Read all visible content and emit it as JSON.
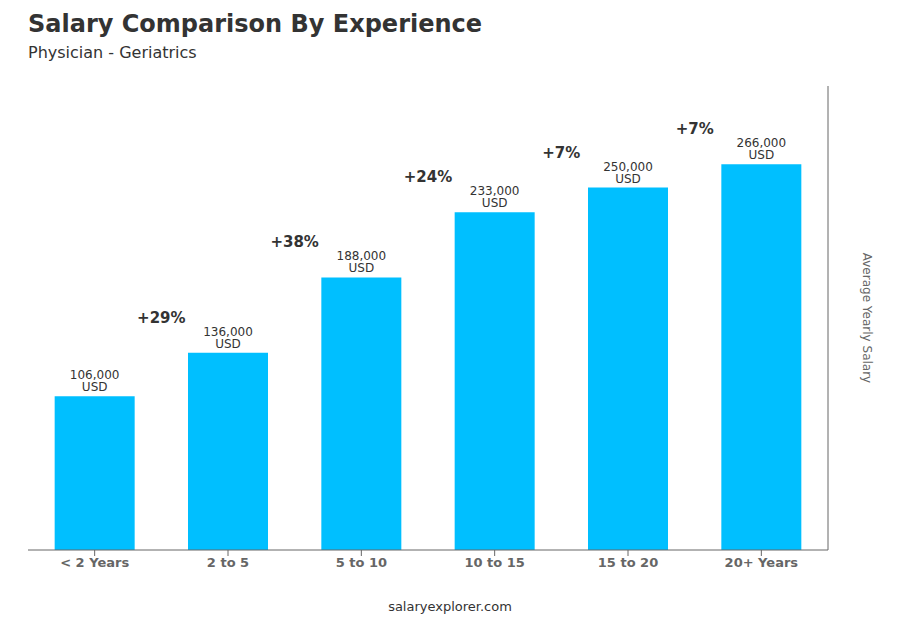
{
  "chart_data": {
    "type": "bar",
    "title": "Salary Comparison By Experience",
    "subtitle": "Physician - Geriatrics",
    "ylabel": "Average Yearly Salary",
    "footer": "salaryexplorer.com",
    "categories": [
      "< 2 Years",
      "2 to 5",
      "5 to 10",
      "10 to 15",
      "15 to 20",
      "20+ Years"
    ],
    "values": [
      106000,
      136000,
      188000,
      233000,
      250000,
      266000
    ],
    "value_labels": [
      "106,000 USD",
      "136,000 USD",
      "188,000 USD",
      "233,000 USD",
      "250,000 USD",
      "266,000 USD"
    ],
    "annotations": [
      "+29%",
      "+38%",
      "+24%",
      "+7%",
      "+7%"
    ],
    "color": "#00BFFF",
    "ylim": [
      0,
      320000
    ],
    "yticks": [],
    "grid": false,
    "data_labels": true,
    "tick_labels": "x"
  }
}
